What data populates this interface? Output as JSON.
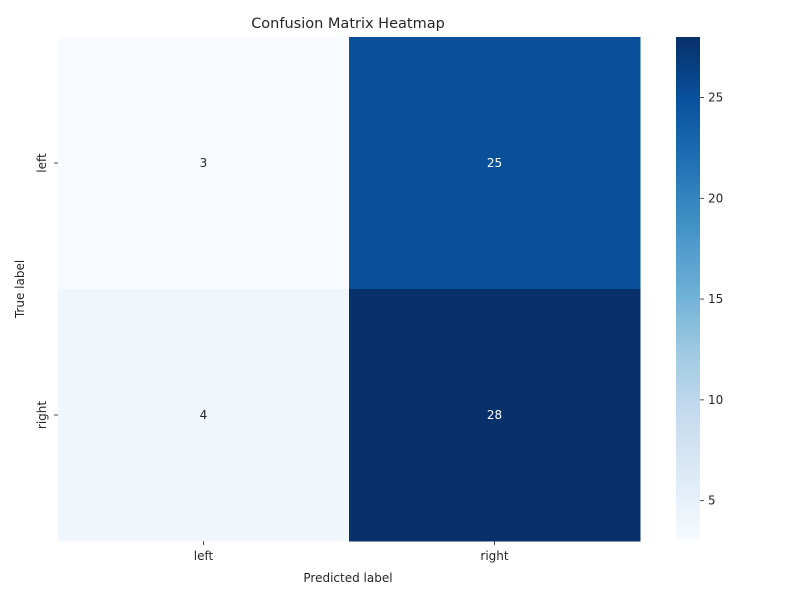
{
  "chart_data": {
    "type": "heatmap",
    "title": "Confusion Matrix Heatmap",
    "xlabel": "Predicted label",
    "ylabel": "True label",
    "x_categories": [
      "left",
      "right"
    ],
    "y_categories": [
      "left",
      "right"
    ],
    "values": [
      [
        3,
        25
      ],
      [
        4,
        28
      ]
    ],
    "colormap": "Blues",
    "color_range": [
      3,
      28
    ],
    "colorbar_ticks": [
      5,
      10,
      15,
      20,
      25
    ],
    "annotations": true,
    "legend": "colorbar-right"
  }
}
